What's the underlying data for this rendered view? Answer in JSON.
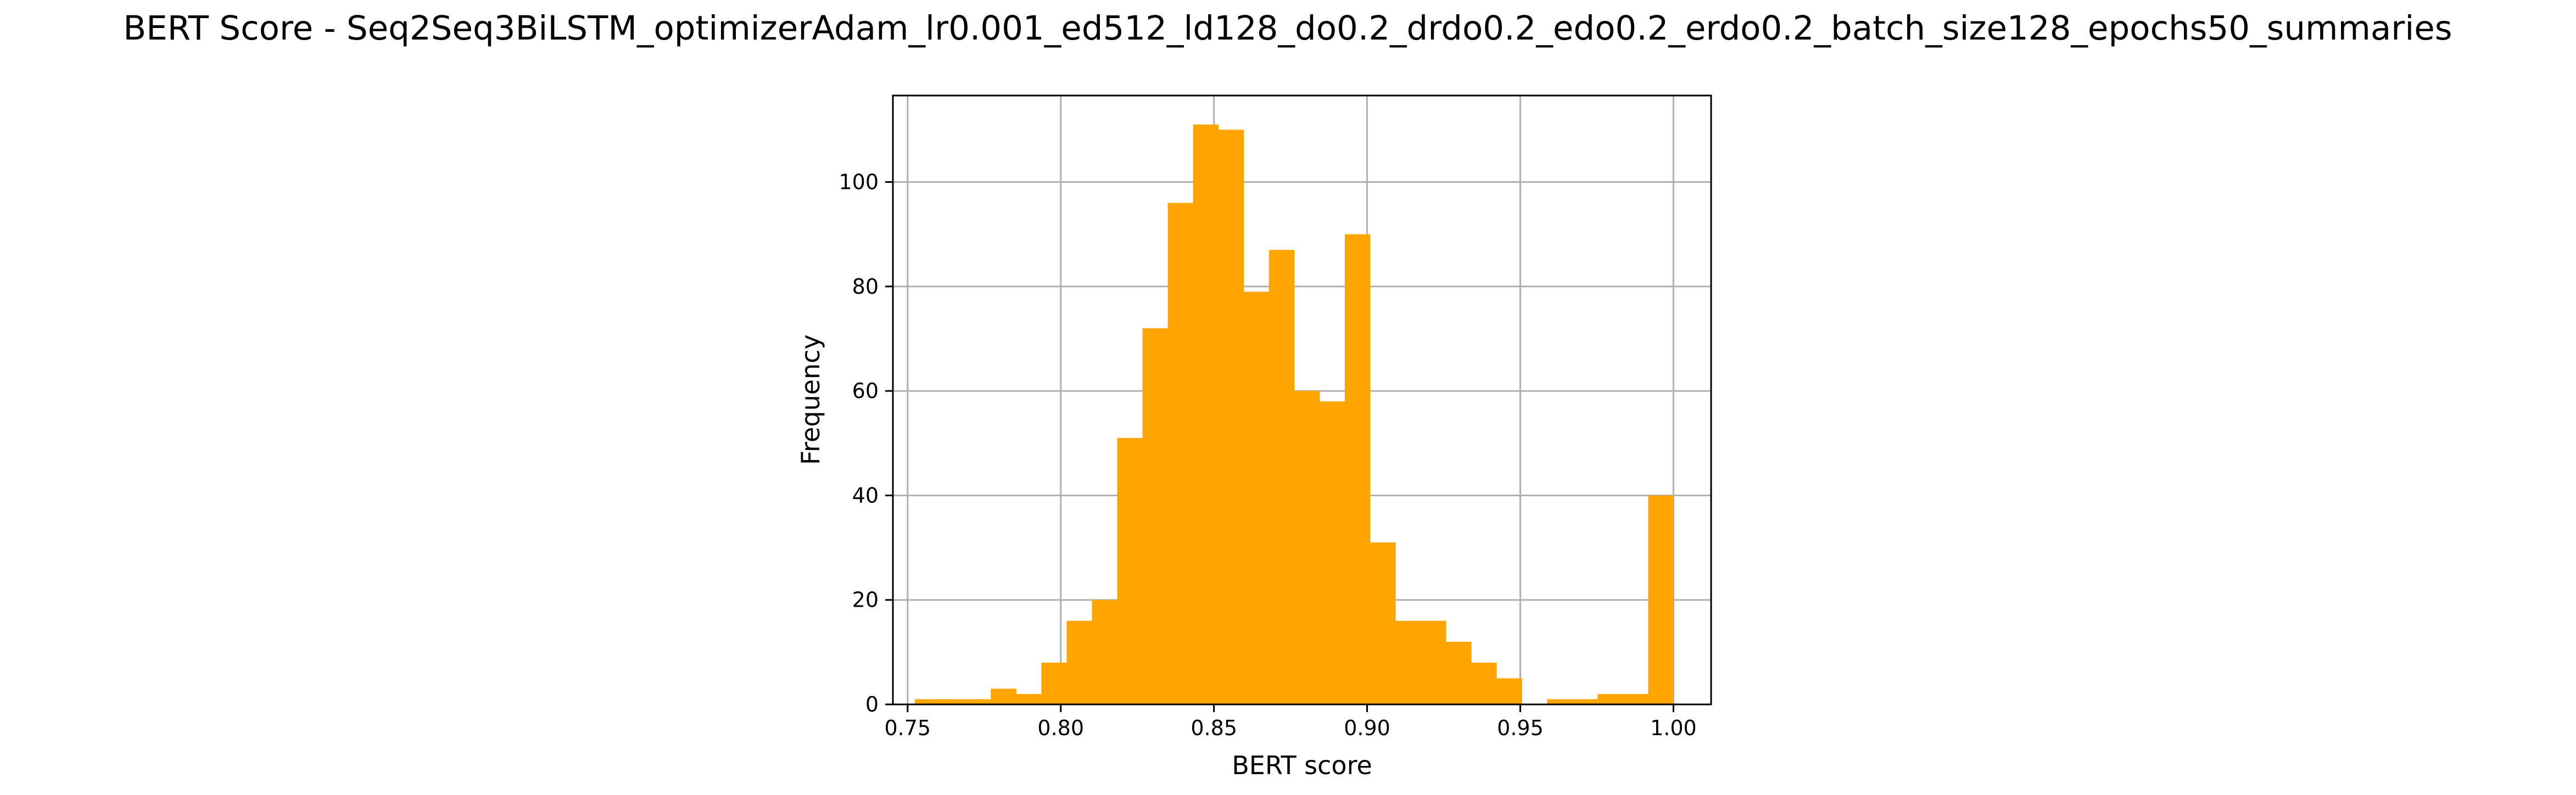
{
  "chart_data": {
    "type": "histogram",
    "title": "BERT Score - Seq2Seq3BiLSTM_optimizerAdam_lr0.001_ed512_ld128_do0.2_drdo0.2_edo0.2_erdo0.2_batch_size128_epochs50_summaries",
    "xlabel": "BERT score",
    "ylabel": "Frequency",
    "xlim": [
      0.7452,
      1.0123
    ],
    "ylim": [
      0,
      116.55
    ],
    "xticks": [
      0.75,
      0.8,
      0.85,
      0.9,
      0.95,
      1.0
    ],
    "xtick_labels": [
      "0.75",
      "0.80",
      "0.85",
      "0.90",
      "0.95",
      "1.00"
    ],
    "yticks": [
      0,
      20,
      40,
      60,
      80,
      100
    ],
    "ytick_labels": [
      "0",
      "20",
      "40",
      "60",
      "80",
      "100"
    ],
    "grid": true,
    "bar_color": "#FFA500",
    "bins": {
      "start": 0.7524,
      "end": 1.0,
      "count": 30
    },
    "values": [
      1,
      1,
      1,
      3,
      2,
      8,
      16,
      20,
      51,
      72,
      96,
      111,
      110,
      79,
      87,
      60,
      58,
      90,
      31,
      16,
      16,
      12,
      8,
      5,
      0,
      1,
      1,
      2,
      2,
      40
    ]
  }
}
